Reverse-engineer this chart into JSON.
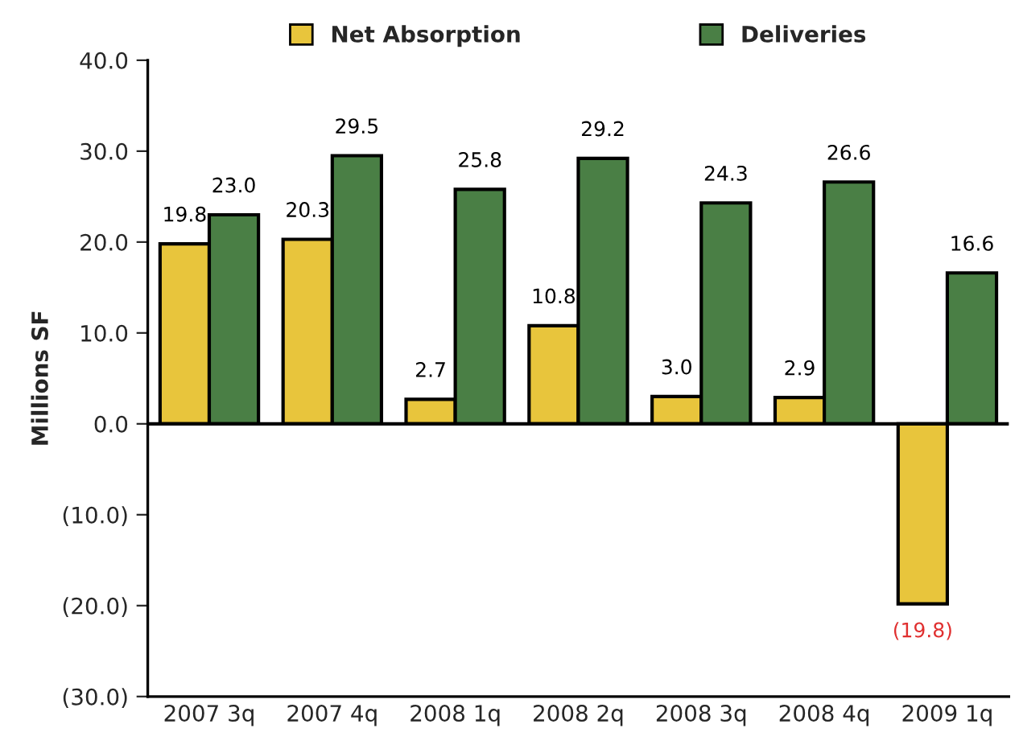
{
  "chart_data": {
    "type": "bar",
    "ylabel": "Millions SF",
    "categories": [
      "2007 3q",
      "2007 4q",
      "2008 1q",
      "2008 2q",
      "2008 3q",
      "2008 4q",
      "2009 1q"
    ],
    "series": [
      {
        "name": "Net Absorption",
        "color": "#e8c53c",
        "values": [
          19.8,
          20.3,
          2.7,
          10.8,
          3.0,
          2.9,
          -19.8
        ],
        "value_labels": [
          "19.8",
          "20.3",
          "2.7",
          "10.8",
          "3.0",
          "2.9",
          "(19.8)"
        ]
      },
      {
        "name": "Deliveries",
        "color": "#4a7f45",
        "values": [
          23.0,
          29.5,
          25.8,
          29.2,
          24.3,
          26.6,
          16.6
        ],
        "value_labels": [
          "23.0",
          "29.5",
          "25.8",
          "29.2",
          "24.3",
          "26.6",
          "16.6"
        ]
      }
    ],
    "ylim": [
      -30,
      40
    ],
    "yticks": [
      {
        "value": -30,
        "label": "(30.0)"
      },
      {
        "value": -20,
        "label": "(20.0)"
      },
      {
        "value": -10,
        "label": "(10.0)"
      },
      {
        "value": 0,
        "label": "0.0"
      },
      {
        "value": 10,
        "label": "10.0"
      },
      {
        "value": 20,
        "label": "20.0"
      },
      {
        "value": 30,
        "label": "30.0"
      },
      {
        "value": 40,
        "label": "40.0"
      }
    ],
    "ref_lines": [
      {
        "axis": "y",
        "value": 0,
        "color": "#000000"
      }
    ],
    "grid": false,
    "legend": "top"
  }
}
